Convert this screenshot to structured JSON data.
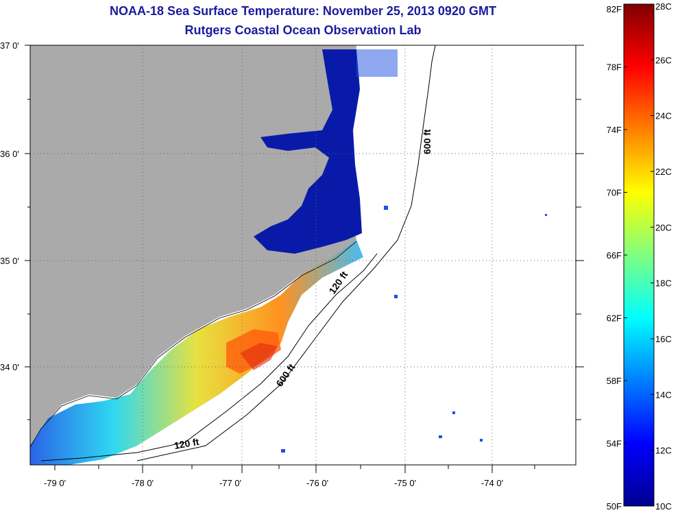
{
  "title_line1": "NOAA-18 Sea Surface Temperature:  November 25, 2013 0920 GMT",
  "title_line2": "Rutgers Coastal Ocean Observation Lab",
  "lat_labels": [
    "37 0'",
    "36 0'",
    "35 0'",
    "34 0'"
  ],
  "lon_labels": [
    "-79 0'",
    "-78 0'",
    "-77 0'",
    "-76 0'",
    "-75 0'",
    "-74 0'"
  ],
  "contours": {
    "shelf_label_1": "120 ft",
    "shelf_label_2": "120 ft",
    "slope_label_1": "600 ft",
    "slope_label_2": "600 ft"
  },
  "colorbar": {
    "fahrenheit": [
      "82F",
      "78F",
      "74F",
      "70F",
      "66F",
      "62F",
      "58F",
      "54F",
      "50F"
    ],
    "celsius": [
      "28C",
      "26C",
      "24C",
      "22C",
      "20C",
      "18C",
      "16C",
      "14C",
      "12C",
      "10C"
    ]
  },
  "colors": {
    "land": "#aaaaaa",
    "title": "#1a1a9e",
    "cold": "#00008f",
    "warm": "#800000"
  }
}
